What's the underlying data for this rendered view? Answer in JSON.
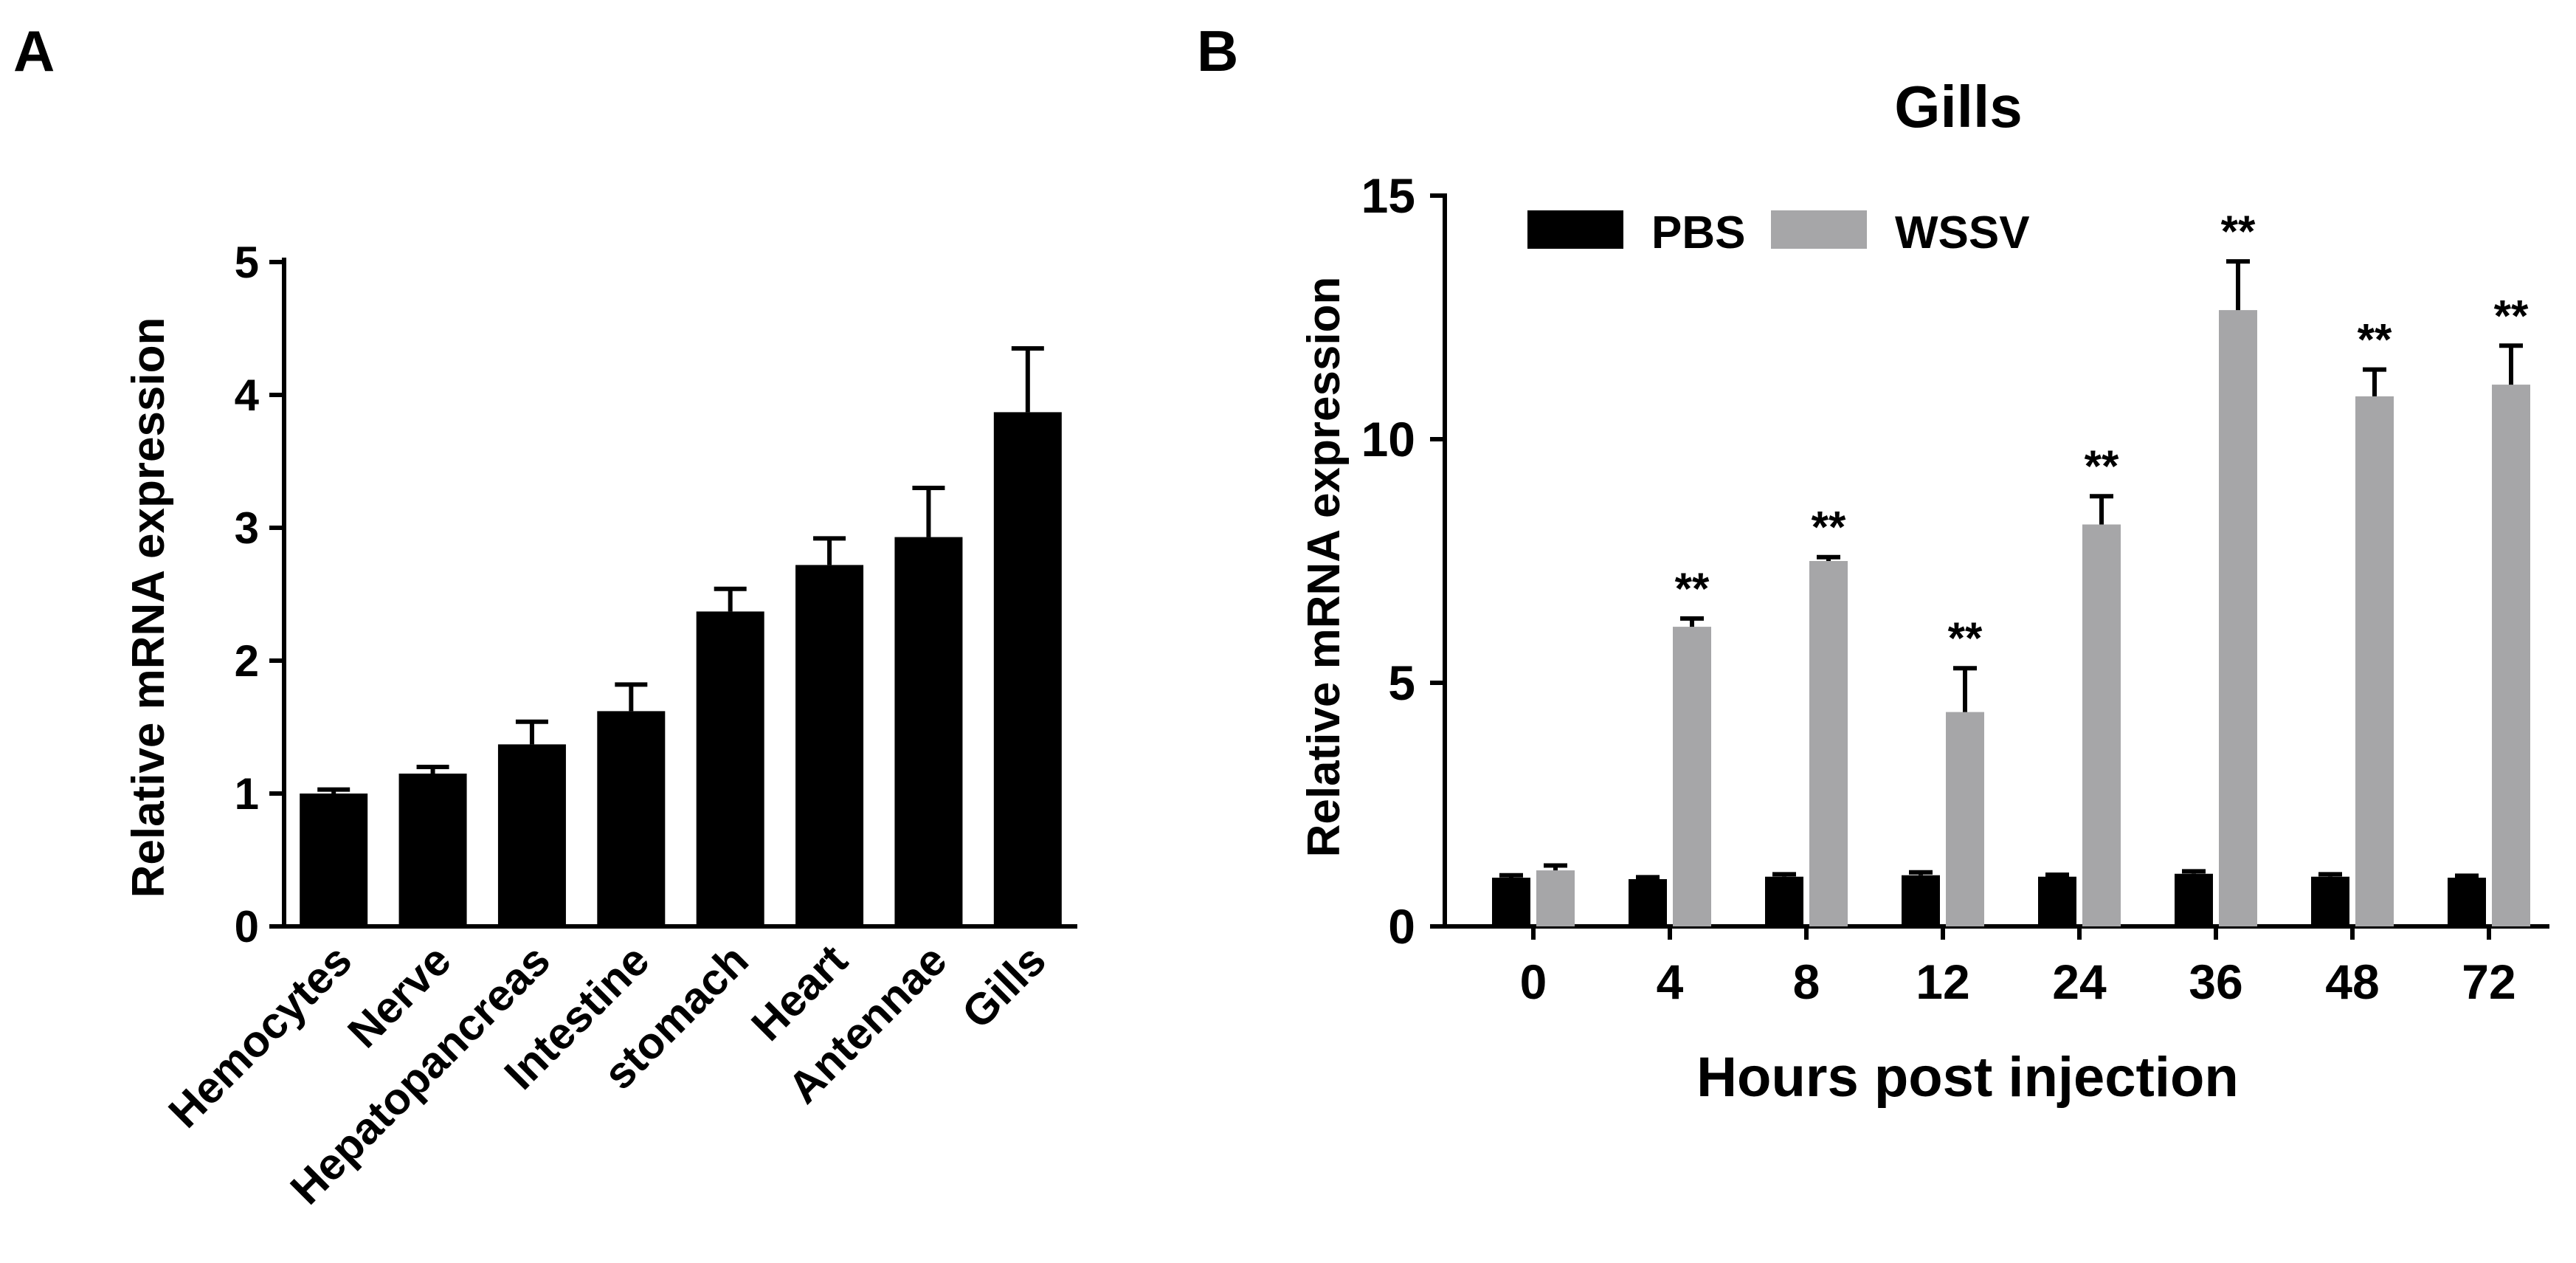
{
  "panels": {
    "a_letter": "A",
    "b_letter": "B"
  },
  "colors": {
    "black_bar": "#000000",
    "grey_bar": "#a6a6a8"
  },
  "chart_data": [
    {
      "type": "bar",
      "title": "",
      "xlabel": "",
      "ylabel": "Relative mRNA expression",
      "ylim": [
        0,
        5
      ],
      "yticks": [
        0,
        1,
        2,
        3,
        4,
        5
      ],
      "categories": [
        "Hemocytes",
        "Nerve",
        "Hepatopancreas",
        "Intestine",
        "stomach",
        "Heart",
        "Antennae",
        "Gills"
      ],
      "series": [
        {
          "values": [
            1.0,
            1.15,
            1.37,
            1.62,
            2.37,
            2.72,
            2.93,
            3.87
          ],
          "errors": [
            0.03,
            0.05,
            0.17,
            0.2,
            0.17,
            0.2,
            0.37,
            0.48
          ],
          "color": "#000000"
        }
      ],
      "grid": false,
      "legend": "none"
    },
    {
      "type": "bar",
      "title": "Gills",
      "xlabel": "Hours post injection",
      "ylabel": "Relative mRNA expression",
      "ylim": [
        0,
        15
      ],
      "yticks": [
        0,
        5,
        10,
        15
      ],
      "categories": [
        "0",
        "4",
        "8",
        "12",
        "24",
        "36",
        "48",
        "72"
      ],
      "series": [
        {
          "name": "PBS",
          "values": [
            1.0,
            0.97,
            1.02,
            1.05,
            1.02,
            1.08,
            1.02,
            1.0
          ],
          "errors": [
            0.05,
            0.04,
            0.05,
            0.06,
            0.04,
            0.05,
            0.05,
            0.04
          ],
          "color": "#000000"
        },
        {
          "name": "WSSV",
          "values": [
            1.15,
            6.15,
            7.5,
            4.4,
            8.25,
            12.65,
            10.88,
            11.12
          ],
          "errors": [
            0.1,
            0.17,
            0.08,
            0.9,
            0.58,
            1.0,
            0.55,
            0.8
          ],
          "significance": [
            "",
            "**",
            "**",
            "**",
            "**",
            "**",
            "**",
            "**"
          ],
          "color": "#a6a6a8"
        }
      ],
      "grid": false,
      "legend": "top-left"
    }
  ]
}
